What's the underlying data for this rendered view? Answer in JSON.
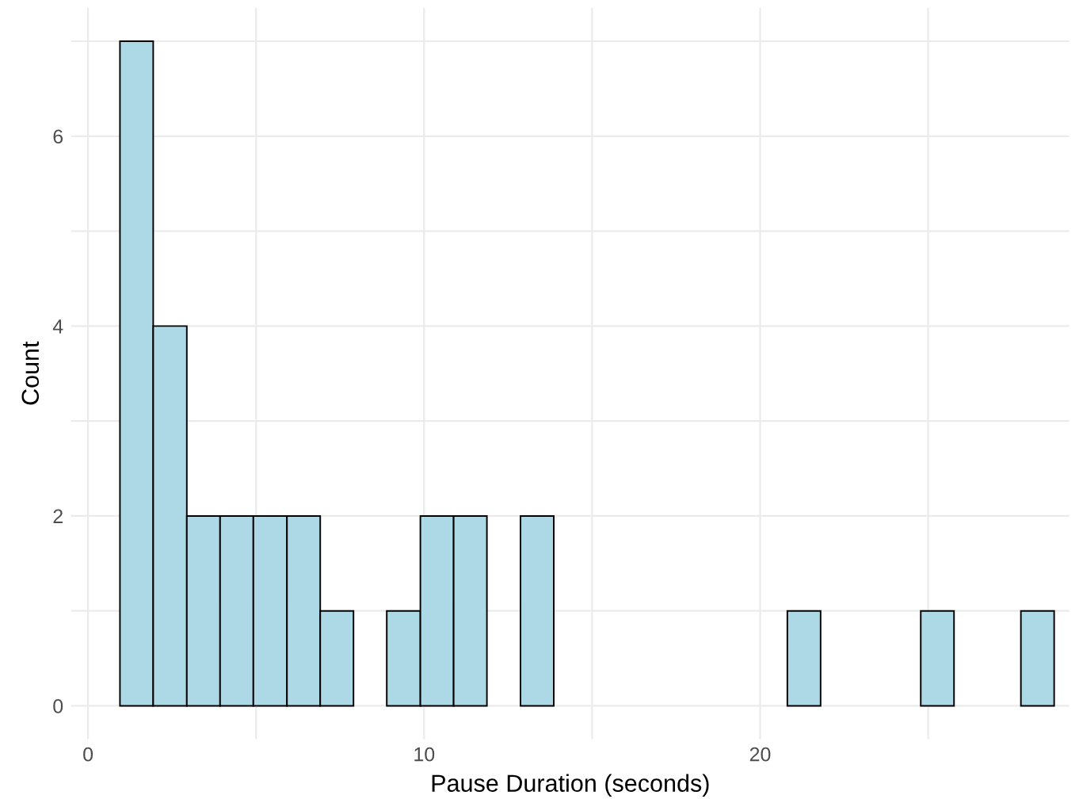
{
  "chart_data": {
    "type": "histogram",
    "xlabel": "Pause Duration (seconds)",
    "ylabel": "Count",
    "bins": [
      0.95,
      1.94,
      2.94,
      3.93,
      4.92,
      5.92,
      6.91,
      7.9,
      8.89,
      9.89,
      10.88,
      11.87,
      12.87,
      13.86,
      14.85,
      15.84,
      16.84,
      17.83,
      18.82,
      19.82,
      20.81,
      21.8,
      22.8,
      23.79,
      24.78,
      25.77,
      26.77,
      27.76,
      28.75
    ],
    "values": [
      7,
      4,
      2,
      2,
      2,
      2,
      1,
      0,
      1,
      2,
      2,
      0,
      2,
      0,
      0,
      0,
      0,
      0,
      0,
      0,
      1,
      0,
      0,
      0,
      1,
      0,
      0,
      1
    ],
    "color": "#add8e6",
    "xlim": [
      -0.5,
      29.2
    ],
    "ylim": [
      -0.35,
      7.35
    ],
    "xticks": [
      0,
      {
        "value": 5,
        "label": null
      },
      10,
      {
        "value": 15,
        "label": null
      },
      20,
      {
        "value": 25,
        "label": null
      }
    ],
    "yticks": [
      0,
      {
        "value": 1,
        "label": null
      },
      2,
      {
        "value": 3,
        "label": null
      },
      4,
      {
        "value": 5,
        "label": null
      },
      6,
      {
        "value": 7,
        "label": null
      }
    ],
    "grid": true
  }
}
